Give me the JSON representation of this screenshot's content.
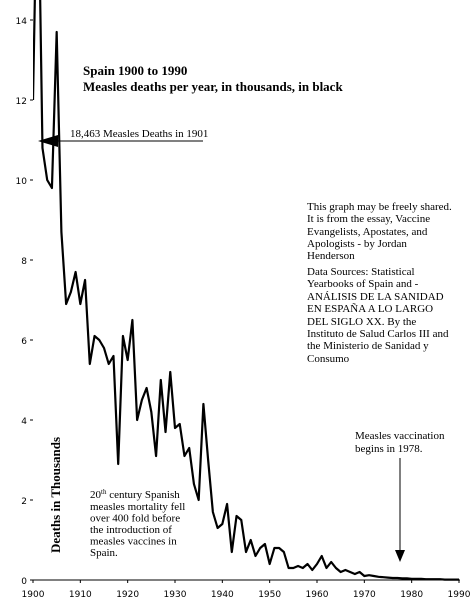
{
  "chart_data": {
    "type": "line",
    "title": [
      "Spain 1900 to 1990",
      "Measles deaths per year, in thousands, in black"
    ],
    "y_label": "Deaths in Thousands",
    "x": [
      1900,
      1901,
      1902,
      1903,
      1904,
      1905,
      1906,
      1907,
      1908,
      1909,
      1910,
      1911,
      1912,
      1913,
      1914,
      1915,
      1916,
      1917,
      1918,
      1919,
      1920,
      1921,
      1922,
      1923,
      1924,
      1925,
      1926,
      1927,
      1928,
      1929,
      1930,
      1931,
      1932,
      1933,
      1934,
      1935,
      1936,
      1937,
      1938,
      1939,
      1940,
      1941,
      1942,
      1943,
      1944,
      1945,
      1946,
      1947,
      1948,
      1949,
      1950,
      1951,
      1952,
      1953,
      1954,
      1955,
      1956,
      1957,
      1958,
      1959,
      1960,
      1961,
      1962,
      1963,
      1964,
      1965,
      1966,
      1967,
      1968,
      1969,
      1970,
      1971,
      1972,
      1973,
      1974,
      1975,
      1976,
      1977,
      1978,
      1979,
      1980,
      1981,
      1982,
      1983,
      1984,
      1985,
      1986,
      1987,
      1988,
      1989,
      1990
    ],
    "series": [
      {
        "color": "#000000",
        "values": [
          12.0,
          18.463,
          10.8,
          10.0,
          9.8,
          13.7,
          8.7,
          6.9,
          7.2,
          7.7,
          6.9,
          7.5,
          5.4,
          6.1,
          6.0,
          5.8,
          5.4,
          5.6,
          2.9,
          6.1,
          5.5,
          6.5,
          4.0,
          4.5,
          4.8,
          4.2,
          3.1,
          5.0,
          3.7,
          5.2,
          3.8,
          3.9,
          3.1,
          3.3,
          2.4,
          2.0,
          4.4,
          3.0,
          1.7,
          1.3,
          1.4,
          1.9,
          0.7,
          1.6,
          1.5,
          0.7,
          1.0,
          0.6,
          0.8,
          0.9,
          0.4,
          0.8,
          0.8,
          0.7,
          0.3,
          0.3,
          0.35,
          0.3,
          0.4,
          0.25,
          0.4,
          0.6,
          0.3,
          0.45,
          0.3,
          0.2,
          0.25,
          0.2,
          0.15,
          0.2,
          0.1,
          0.12,
          0.1,
          0.08,
          0.07,
          0.06,
          0.05,
          0.05,
          0.04,
          0.04,
          0.03,
          0.03,
          0.03,
          0.02,
          0.02,
          0.02,
          0.02,
          0.01,
          0.01,
          0.01,
          0.01
        ]
      }
    ],
    "xlim": [
      1900,
      1990
    ],
    "ylim": [
      0,
      14
    ],
    "xticks": [
      1900,
      1910,
      1920,
      1930,
      1940,
      1950,
      1960,
      1970,
      1980,
      1990
    ],
    "yticks": [
      0,
      2,
      4,
      6,
      8,
      10,
      12,
      14
    ],
    "annotations": {
      "peak": "18,463 Measles Deaths in 1901",
      "vaccination": [
        "Measles vaccination",
        "begins in 1978."
      ],
      "info": [
        "This graph may be freely shared.",
        "It is from the essay, Vaccine",
        "Evangelists, Apostates, and",
        "Apologists - by Jordan",
        "Henderson",
        "Data Sources: Statistical",
        "Yearbooks of Spain and -",
        "ANÁLISIS DE LA SANIDAD",
        "EN ESPAÑA A LO LARGO",
        "DEL SIGLO XX. By the",
        "Instituto de Salud Carlos III and",
        "the Ministerio de Sanidad y",
        "Consumo"
      ],
      "summary": {
        "first": {
          "num": "20",
          "sup": "th",
          "rest": " century Spanish"
        },
        "lines": [
          "measles mortality fell",
          "over 400 fold before",
          "the introduction of",
          "measles vaccines in",
          "Spain."
        ]
      }
    }
  }
}
